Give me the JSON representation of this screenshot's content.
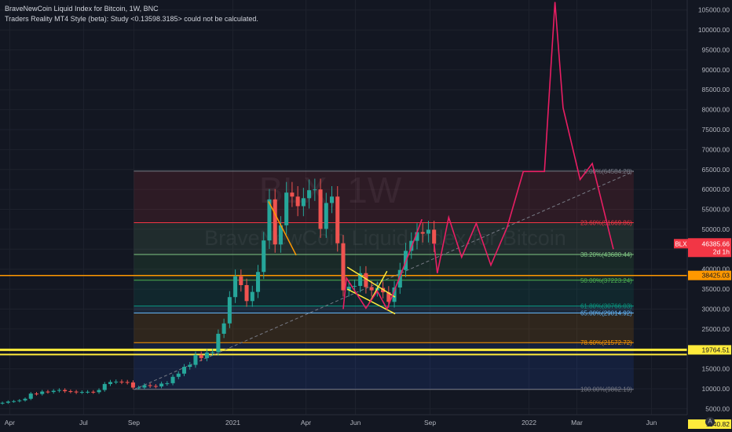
{
  "header": {
    "symbol_line": "BraveNewCoin Liquid Index for Bitcoin, 1W, BNC",
    "indicator_line": "Traders Reality MT4 Style (beta): Study <0.13598.3185> could not be calculated."
  },
  "watermark": {
    "ticker": "BLX, 1W",
    "name": "BraveNewCoin Liquid Index for Bitcoin"
  },
  "colors": {
    "background": "#131722",
    "up_candle": "#26a69a",
    "down_candle": "#ef5350",
    "projection": "#e91e63",
    "trendline": "#ffeb3b",
    "level_orange": "#ff9800",
    "level_yellow": "#ffeb3b"
  },
  "pane_icon": "A",
  "chart_data": {
    "type": "candlestick",
    "title": "BraveNewCoin Liquid Index for Bitcoin, 1W, BNC",
    "yscale": "linear",
    "ylim": [
      3500,
      107500
    ],
    "xlim": [
      "2020-03-20",
      "2022-07-15"
    ],
    "y_ticks": [
      5000,
      10000,
      15000,
      20000,
      25000,
      30000,
      35000,
      40000,
      45000,
      50000,
      55000,
      60000,
      65000,
      70000,
      75000,
      80000,
      85000,
      90000,
      95000,
      100000,
      105000
    ],
    "y_tick_labels": [
      "5000.00",
      "10000.00",
      "15000.00",
      "20000.00",
      "25000.00",
      "30000.00",
      "35000.00",
      "40000.00",
      "45000.00",
      "50000.00",
      "55000.00",
      "60000.00",
      "65000.00",
      "70000.00",
      "75000.00",
      "80000.00",
      "85000.00",
      "90000.00",
      "95000.00",
      "100000.00",
      "105000.00"
    ],
    "x_ticks": [
      {
        "date": "2020-04-01",
        "label": "Apr"
      },
      {
        "date": "2020-07-01",
        "label": "Jul"
      },
      {
        "date": "2020-09-01",
        "label": "Sep"
      },
      {
        "date": "2021-01-01",
        "label": "2021"
      },
      {
        "date": "2021-04-01",
        "label": "Apr"
      },
      {
        "date": "2021-06-01",
        "label": "Jun"
      },
      {
        "date": "2021-09-01",
        "label": "Sep"
      },
      {
        "date": "2022-01-01",
        "label": "2022"
      },
      {
        "date": "2022-03-01",
        "label": "Mar"
      },
      {
        "date": "2022-06-01",
        "label": "Jun"
      }
    ],
    "candle_closes": [
      {
        "date": "2020-03-23",
        "close": 6500
      },
      {
        "date": "2020-03-30",
        "close": 6800
      },
      {
        "date": "2020-04-06",
        "close": 6900
      },
      {
        "date": "2020-04-13",
        "close": 7100
      },
      {
        "date": "2020-04-20",
        "close": 7500
      },
      {
        "date": "2020-04-27",
        "close": 8800
      },
      {
        "date": "2020-05-04",
        "close": 8700
      },
      {
        "date": "2020-05-11",
        "close": 9300
      },
      {
        "date": "2020-05-18",
        "close": 9200
      },
      {
        "date": "2020-05-25",
        "close": 9500
      },
      {
        "date": "2020-06-01",
        "close": 9700
      },
      {
        "date": "2020-06-08",
        "close": 9400
      },
      {
        "date": "2020-06-15",
        "close": 9300
      },
      {
        "date": "2020-06-22",
        "close": 9100
      },
      {
        "date": "2020-06-29",
        "close": 9200
      },
      {
        "date": "2020-07-06",
        "close": 9250
      },
      {
        "date": "2020-07-13",
        "close": 9150
      },
      {
        "date": "2020-07-20",
        "close": 9700
      },
      {
        "date": "2020-07-27",
        "close": 11200
      },
      {
        "date": "2020-08-03",
        "close": 11700
      },
      {
        "date": "2020-08-10",
        "close": 11800
      },
      {
        "date": "2020-08-17",
        "close": 11700
      },
      {
        "date": "2020-08-24",
        "close": 11600
      },
      {
        "date": "2020-08-31",
        "close": 10300
      },
      {
        "date": "2020-09-07",
        "close": 10300
      },
      {
        "date": "2020-09-14",
        "close": 10900
      },
      {
        "date": "2020-09-21",
        "close": 10700
      },
      {
        "date": "2020-09-28",
        "close": 10600
      },
      {
        "date": "2020-10-05",
        "close": 11300
      },
      {
        "date": "2020-10-12",
        "close": 11400
      },
      {
        "date": "2020-10-19",
        "close": 13000
      },
      {
        "date": "2020-10-26",
        "close": 13800
      },
      {
        "date": "2020-11-02",
        "close": 15500
      },
      {
        "date": "2020-11-09",
        "close": 16000
      },
      {
        "date": "2020-11-16",
        "close": 18500
      },
      {
        "date": "2020-11-23",
        "close": 17700
      },
      {
        "date": "2020-11-30",
        "close": 19100
      },
      {
        "date": "2020-12-07",
        "close": 19200
      },
      {
        "date": "2020-12-14",
        "close": 23800
      },
      {
        "date": "2020-12-21",
        "close": 26400
      },
      {
        "date": "2020-12-28",
        "close": 33000
      },
      {
        "date": "2021-01-04",
        "close": 38200
      },
      {
        "date": "2021-01-11",
        "close": 36000
      },
      {
        "date": "2021-01-18",
        "close": 32000
      },
      {
        "date": "2021-01-25",
        "close": 34300
      },
      {
        "date": "2021-02-01",
        "close": 39300
      },
      {
        "date": "2021-02-08",
        "close": 47200
      },
      {
        "date": "2021-02-15",
        "close": 57500
      },
      {
        "date": "2021-02-22",
        "close": 46200
      },
      {
        "date": "2021-03-01",
        "close": 51000
      },
      {
        "date": "2021-03-08",
        "close": 59200
      },
      {
        "date": "2021-03-15",
        "close": 58200
      },
      {
        "date": "2021-03-22",
        "close": 55800
      },
      {
        "date": "2021-03-29",
        "close": 57800
      },
      {
        "date": "2021-04-05",
        "close": 59800
      },
      {
        "date": "2021-04-12",
        "close": 60000
      },
      {
        "date": "2021-04-19",
        "close": 50100
      },
      {
        "date": "2021-04-26",
        "close": 56600
      },
      {
        "date": "2021-05-03",
        "close": 58200
      },
      {
        "date": "2021-05-10",
        "close": 46500
      },
      {
        "date": "2021-05-17",
        "close": 34700
      },
      {
        "date": "2021-05-24",
        "close": 35600
      },
      {
        "date": "2021-05-31",
        "close": 35800
      },
      {
        "date": "2021-06-07",
        "close": 39000
      },
      {
        "date": "2021-06-14",
        "close": 35500
      },
      {
        "date": "2021-06-21",
        "close": 34700
      },
      {
        "date": "2021-06-28",
        "close": 35300
      },
      {
        "date": "2021-07-05",
        "close": 34200
      },
      {
        "date": "2021-07-12",
        "close": 31800
      },
      {
        "date": "2021-07-19",
        "close": 35400
      },
      {
        "date": "2021-07-26",
        "close": 39800
      },
      {
        "date": "2021-08-02",
        "close": 44600
      },
      {
        "date": "2021-08-09",
        "close": 47100
      },
      {
        "date": "2021-08-16",
        "close": 49300
      },
      {
        "date": "2021-08-23",
        "close": 48900
      },
      {
        "date": "2021-08-30",
        "close": 49900
      },
      {
        "date": "2021-09-06",
        "close": 46385.66
      }
    ],
    "fib_retracement": {
      "from_date": "2020-09-01",
      "to_date": "2022-05-10",
      "levels": [
        {
          "ratio": "0.00",
          "label": "0.00%(64584.28)",
          "price": 64584.28,
          "color": "#787b86"
        },
        {
          "ratio": "23.60",
          "label": "23.60%(51669.86)",
          "price": 51669.86,
          "color": "#f23645"
        },
        {
          "ratio": "38.20",
          "label": "38.20%(43680.44)",
          "price": 43680.44,
          "color": "#81c784"
        },
        {
          "ratio": "50.00",
          "label": "50.00%(37223.24)",
          "price": 37223.24,
          "color": "#4caf50"
        },
        {
          "ratio": "61.80",
          "label": "61.80%(30766.03)",
          "price": 30766.03,
          "color": "#089981"
        },
        {
          "ratio": "65.00",
          "label": "65.00%(29014.92)",
          "price": 29014.92,
          "color": "#64b5f6"
        },
        {
          "ratio": "78.60",
          "label": "78.60%(21572.72)",
          "price": 21572.72,
          "color": "#ff9800"
        },
        {
          "ratio": "100.00",
          "label": "100.00%(9862.19)",
          "price": 9862.19,
          "color": "#787b86"
        }
      ]
    },
    "horizontal_levels": [
      {
        "price": 38425.03,
        "label": "38425.03",
        "color": "#ff9800"
      },
      {
        "price": 19764.51,
        "label": "19764.51",
        "color": "#ffeb3b"
      },
      {
        "price": 1140.82,
        "label": "1140.82",
        "color": "#ffeb3b"
      }
    ],
    "last_price": {
      "label": "BLX",
      "value": "46385.66",
      "countdown": "2d 1h",
      "color": "#f23645"
    },
    "projection_path": [
      {
        "date": "2021-09-06",
        "price": 46500
      },
      {
        "date": "2021-09-10",
        "price": 39000
      },
      {
        "date": "2021-09-24",
        "price": 53000
      },
      {
        "date": "2021-10-10",
        "price": 43000
      },
      {
        "date": "2021-10-28",
        "price": 51500
      },
      {
        "date": "2021-11-15",
        "price": 41000
      },
      {
        "date": "2021-12-05",
        "price": 50500
      },
      {
        "date": "2021-12-25",
        "price": 64500
      },
      {
        "date": "2022-01-20",
        "price": 64500
      },
      {
        "date": "2022-02-02",
        "price": 107000
      },
      {
        "date": "2022-02-12",
        "price": 80500
      },
      {
        "date": "2022-03-05",
        "price": 62500
      },
      {
        "date": "2022-03-20",
        "price": 66500
      },
      {
        "date": "2022-04-15",
        "price": 45000
      }
    ],
    "projection_early": [
      {
        "date": "2021-05-17",
        "price": 30000
      },
      {
        "date": "2021-05-21",
        "price": 37800
      },
      {
        "date": "2021-06-14",
        "price": 30200
      },
      {
        "date": "2021-06-28",
        "price": 34500
      },
      {
        "date": "2021-07-10",
        "price": 30000
      },
      {
        "date": "2021-08-10",
        "price": 46000
      },
      {
        "date": "2021-08-22",
        "price": 52500
      }
    ],
    "trendlines": [
      {
        "from": {
          "date": "2021-05-22",
          "price": 40500
        },
        "to": {
          "date": "2021-07-20",
          "price": 33000
        },
        "color": "#ffeb3b"
      },
      {
        "from": {
          "date": "2021-05-22",
          "price": 35000
        },
        "to": {
          "date": "2021-07-20",
          "price": 28800
        },
        "color": "#ffeb3b"
      },
      {
        "from": {
          "date": "2021-06-18",
          "price": 31500
        },
        "to": {
          "date": "2021-07-10",
          "price": 39500
        },
        "color": "#ffeb3b"
      },
      {
        "from": {
          "date": "2021-02-14",
          "price": 57000
        },
        "to": {
          "date": "2021-03-20",
          "price": 43500
        },
        "color": "#ff9800"
      }
    ],
    "dashed_trend": {
      "from": {
        "date": "2020-09-01",
        "price": 9800
      },
      "to": {
        "date": "2022-05-10",
        "price": 64500
      }
    }
  }
}
